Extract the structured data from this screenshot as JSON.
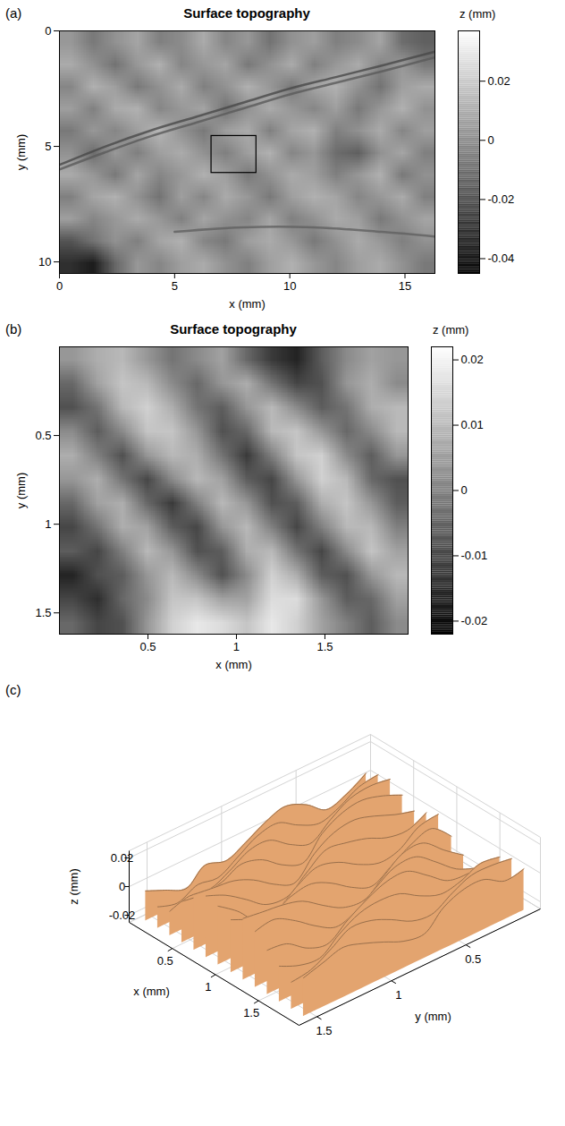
{
  "chart_data": [
    {
      "type": "heatmap",
      "panel": "(a)",
      "title": "Surface topography",
      "xlabel": "x (mm)",
      "ylabel": "y (mm)",
      "xlim": [
        0,
        16.3
      ],
      "ylim": [
        0,
        10.5
      ],
      "xticks": [
        0,
        5,
        10,
        15
      ],
      "yticks": [
        0,
        5,
        10
      ],
      "x": [
        0.48,
        1.44,
        2.4,
        3.36,
        4.31,
        5.27,
        6.23,
        7.19,
        8.15,
        9.11,
        10.07,
        11.03,
        11.99,
        12.94,
        13.9,
        14.86,
        15.82
      ],
      "y": [
        0.48,
        1.43,
        2.39,
        3.34,
        4.3,
        5.25,
        6.2,
        7.16,
        8.11,
        9.07,
        10.02
      ],
      "z": [
        [
          0.004,
          -0.006,
          0.002,
          0.008,
          -0.004,
          0.0,
          0.01,
          -0.002,
          0.004,
          -0.008,
          0.002,
          0.006,
          -0.004,
          0.0,
          0.008,
          -0.01,
          -0.014
        ],
        [
          0.01,
          0.002,
          -0.008,
          0.004,
          0.012,
          -0.002,
          0.004,
          0.008,
          -0.006,
          0.002,
          0.01,
          -0.004,
          0.004,
          0.01,
          -0.002,
          0.004,
          -0.006
        ],
        [
          -0.002,
          0.012,
          0.006,
          -0.006,
          0.002,
          0.01,
          -0.004,
          0.002,
          0.012,
          0.004,
          -0.006,
          0.008,
          0.012,
          0.002,
          -0.008,
          0.006,
          0.01
        ],
        [
          0.006,
          -0.004,
          0.01,
          0.012,
          -0.002,
          0.004,
          0.008,
          -0.008,
          0.002,
          0.01,
          0.004,
          -0.002,
          0.006,
          -0.006,
          0.004,
          0.012,
          0.002
        ],
        [
          -0.006,
          0.004,
          -0.002,
          0.006,
          0.014,
          0.002,
          -0.006,
          0.006,
          0.01,
          -0.004,
          0.008,
          0.012,
          -0.004,
          0.002,
          0.01,
          -0.002,
          0.006
        ],
        [
          0.002,
          -0.01,
          0.004,
          -0.004,
          0.006,
          0.01,
          0.002,
          -0.004,
          0.006,
          0.012,
          -0.002,
          0.004,
          -0.01,
          -0.014,
          0.002,
          0.008,
          -0.004
        ],
        [
          0.01,
          0.004,
          -0.006,
          0.008,
          -0.002,
          0.004,
          0.012,
          0.006,
          -0.006,
          0.002,
          0.01,
          0.006,
          -0.004,
          0.004,
          0.012,
          -0.006,
          0.002
        ],
        [
          -0.004,
          0.008,
          0.012,
          0.002,
          -0.008,
          0.006,
          -0.002,
          0.01,
          0.004,
          -0.006,
          0.006,
          0.012,
          0.008,
          -0.002,
          0.004,
          0.01,
          -0.004
        ],
        [
          0.006,
          -0.002,
          0.004,
          0.01,
          0.004,
          -0.004,
          0.008,
          0.002,
          -0.002,
          0.008,
          -0.004,
          0.002,
          0.01,
          0.006,
          -0.006,
          0.002,
          0.008
        ],
        [
          -0.018,
          -0.008,
          0.002,
          -0.004,
          0.008,
          0.012,
          -0.002,
          -0.006,
          0.006,
          0.01,
          0.004,
          -0.006,
          0.002,
          0.01,
          0.004,
          -0.004,
          0.002
        ],
        [
          -0.03,
          -0.036,
          -0.012,
          0.004,
          -0.002,
          0.006,
          0.01,
          0.002,
          -0.004,
          0.006,
          0.012,
          0.004,
          -0.002,
          0.006,
          0.01,
          0.002,
          -0.006
        ]
      ],
      "grooves": [
        {
          "x": [
            0,
            2,
            4,
            6,
            8,
            10,
            12,
            14,
            16.3
          ],
          "y": [
            5.8,
            5.0,
            4.3,
            3.7,
            3.1,
            2.5,
            2.0,
            1.5,
            0.9
          ],
          "z": -0.022
        },
        {
          "x": [
            0,
            2,
            4,
            6,
            8,
            10,
            12,
            14,
            16.3
          ],
          "y": [
            6.0,
            5.25,
            4.55,
            3.95,
            3.35,
            2.75,
            2.25,
            1.75,
            1.15
          ],
          "z": -0.016
        },
        {
          "x": [
            5,
            8,
            11,
            14,
            16.3
          ],
          "y": [
            8.7,
            8.5,
            8.5,
            8.7,
            8.9
          ],
          "z": -0.014
        }
      ],
      "inset": {
        "x": [
          6.6,
          8.55
        ],
        "y": [
          4.55,
          6.15
        ]
      },
      "colorbar": {
        "label": "z (mm)",
        "lim": [
          -0.045,
          0.037
        ],
        "ticks": [
          -0.04,
          -0.02,
          0,
          0.02
        ]
      }
    },
    {
      "type": "heatmap",
      "panel": "(b)",
      "title": "Surface topography",
      "xlabel": "x (mm)",
      "ylabel": "y (mm)",
      "xlim": [
        0,
        1.97
      ],
      "ylim": [
        0,
        1.62
      ],
      "xticks": [
        0.5,
        1,
        1.5
      ],
      "yticks": [
        0.5,
        1,
        1.5
      ],
      "x": [
        0.07,
        0.21,
        0.35,
        0.49,
        0.63,
        0.77,
        0.91,
        1.06,
        1.2,
        1.34,
        1.48,
        1.62,
        1.76,
        1.9
      ],
      "y": [
        0.07,
        0.2,
        0.34,
        0.47,
        0.61,
        0.74,
        0.88,
        1.01,
        1.15,
        1.28,
        1.42,
        1.55
      ],
      "z": [
        [
          0.004,
          0.008,
          0.01,
          0.004,
          -0.002,
          0.002,
          0.006,
          -0.004,
          -0.012,
          -0.016,
          -0.006,
          0.002,
          0.006,
          0.004
        ],
        [
          -0.004,
          0.006,
          0.012,
          0.01,
          0.002,
          -0.004,
          0.004,
          0.008,
          -0.002,
          -0.01,
          -0.008,
          0.004,
          0.008,
          0.002
        ],
        [
          -0.008,
          -0.002,
          0.01,
          0.014,
          0.008,
          -0.002,
          -0.006,
          0.004,
          0.01,
          0.002,
          -0.006,
          -0.002,
          0.008,
          0.01
        ],
        [
          0.002,
          -0.006,
          0.002,
          0.012,
          0.012,
          0.004,
          -0.008,
          -0.004,
          0.01,
          0.012,
          0.004,
          -0.004,
          0.002,
          0.01
        ],
        [
          0.008,
          0.0,
          -0.008,
          0.004,
          0.01,
          0.008,
          -0.002,
          -0.012,
          0.0,
          0.012,
          0.014,
          0.002,
          -0.006,
          0.004
        ],
        [
          0.004,
          0.008,
          -0.002,
          -0.01,
          0.002,
          0.01,
          0.006,
          -0.006,
          -0.01,
          0.004,
          0.014,
          0.01,
          -0.004,
          -0.008
        ],
        [
          -0.004,
          0.006,
          0.008,
          -0.004,
          -0.012,
          0.0,
          0.01,
          0.004,
          -0.008,
          -0.006,
          0.008,
          0.012,
          0.004,
          -0.006
        ],
        [
          -0.01,
          -0.002,
          0.008,
          0.006,
          -0.006,
          -0.01,
          0.004,
          0.01,
          0.0,
          -0.01,
          0.0,
          0.01,
          0.01,
          0.0
        ],
        [
          -0.006,
          -0.01,
          0.0,
          0.01,
          0.004,
          -0.008,
          -0.006,
          0.008,
          0.01,
          -0.002,
          -0.01,
          0.002,
          0.012,
          0.006
        ],
        [
          -0.016,
          -0.008,
          -0.006,
          0.004,
          0.01,
          0.002,
          -0.008,
          0.002,
          0.014,
          0.008,
          -0.006,
          -0.008,
          0.004,
          0.01
        ],
        [
          -0.01,
          -0.014,
          -0.004,
          0.002,
          0.012,
          0.012,
          0.006,
          0.006,
          0.016,
          0.016,
          0.004,
          -0.006,
          -0.004,
          0.006
        ],
        [
          -0.004,
          -0.01,
          -0.008,
          0.004,
          0.014,
          0.018,
          0.016,
          0.012,
          0.018,
          0.014,
          0.006,
          0.0,
          -0.006,
          0.002
        ]
      ],
      "colorbar": {
        "label": "z (mm)",
        "lim": [
          -0.022,
          0.022
        ],
        "ticks": [
          -0.02,
          -0.01,
          0,
          0.01,
          0.02
        ]
      }
    },
    {
      "type": "surface",
      "panel": "(c)",
      "xlabel": "x (mm)",
      "ylabel": "y (mm)",
      "zlabel": "z (mm)",
      "xlim": [
        0,
        1.97
      ],
      "ylim": [
        0,
        1.62
      ],
      "zlim": [
        -0.025,
        0.025
      ],
      "xticks": [
        0.5,
        1,
        1.5
      ],
      "yticks": [
        0.5,
        1,
        1.5
      ],
      "zticks": [
        -0.02,
        0,
        0.02
      ],
      "color": "#e3a46f",
      "grid": true,
      "x": [
        0.07,
        0.21,
        0.35,
        0.49,
        0.63,
        0.77,
        0.91,
        1.06,
        1.2,
        1.34,
        1.48,
        1.62,
        1.76,
        1.9
      ],
      "y": [
        0.07,
        0.2,
        0.34,
        0.47,
        0.61,
        0.74,
        0.88,
        1.01,
        1.15,
        1.28,
        1.42,
        1.55
      ],
      "z": [
        [
          0.004,
          0.008,
          0.01,
          0.004,
          -0.002,
          0.002,
          0.006,
          -0.004,
          -0.012,
          -0.016,
          -0.006,
          0.002,
          0.006,
          0.004
        ],
        [
          -0.004,
          0.006,
          0.012,
          0.01,
          0.002,
          -0.004,
          0.004,
          0.008,
          -0.002,
          -0.01,
          -0.008,
          0.004,
          0.008,
          0.002
        ],
        [
          -0.008,
          -0.002,
          0.01,
          0.014,
          0.008,
          -0.002,
          -0.006,
          0.004,
          0.01,
          0.002,
          -0.006,
          -0.002,
          0.008,
          0.01
        ],
        [
          0.002,
          -0.006,
          0.002,
          0.012,
          0.012,
          0.004,
          -0.008,
          -0.004,
          0.01,
          0.012,
          0.004,
          -0.004,
          0.002,
          0.01
        ],
        [
          0.008,
          0.0,
          -0.008,
          0.004,
          0.01,
          0.008,
          -0.002,
          -0.012,
          0.0,
          0.012,
          0.014,
          0.002,
          -0.006,
          0.004
        ],
        [
          0.004,
          0.008,
          -0.002,
          -0.01,
          0.002,
          0.01,
          0.006,
          -0.006,
          -0.01,
          0.004,
          0.014,
          0.01,
          -0.004,
          -0.008
        ],
        [
          -0.004,
          0.006,
          0.008,
          -0.004,
          -0.012,
          0.0,
          0.01,
          0.004,
          -0.008,
          -0.006,
          0.008,
          0.012,
          0.004,
          -0.006
        ],
        [
          -0.01,
          -0.002,
          0.008,
          0.006,
          -0.006,
          -0.01,
          0.004,
          0.01,
          0.0,
          -0.01,
          0.0,
          0.01,
          0.01,
          0.0
        ],
        [
          -0.006,
          -0.01,
          0.0,
          0.01,
          0.004,
          -0.008,
          -0.006,
          0.008,
          0.01,
          -0.002,
          -0.01,
          0.002,
          0.012,
          0.006
        ],
        [
          -0.016,
          -0.008,
          -0.006,
          0.004,
          0.01,
          0.002,
          -0.008,
          0.002,
          0.014,
          0.008,
          -0.006,
          -0.008,
          0.004,
          0.01
        ],
        [
          -0.01,
          -0.014,
          -0.004,
          0.002,
          0.012,
          0.012,
          0.006,
          0.006,
          0.016,
          0.016,
          0.004,
          -0.006,
          -0.004,
          0.006
        ],
        [
          -0.004,
          -0.01,
          -0.008,
          0.004,
          0.014,
          0.018,
          0.016,
          0.012,
          0.018,
          0.014,
          0.006,
          0.0,
          -0.006,
          0.002
        ]
      ]
    }
  ]
}
